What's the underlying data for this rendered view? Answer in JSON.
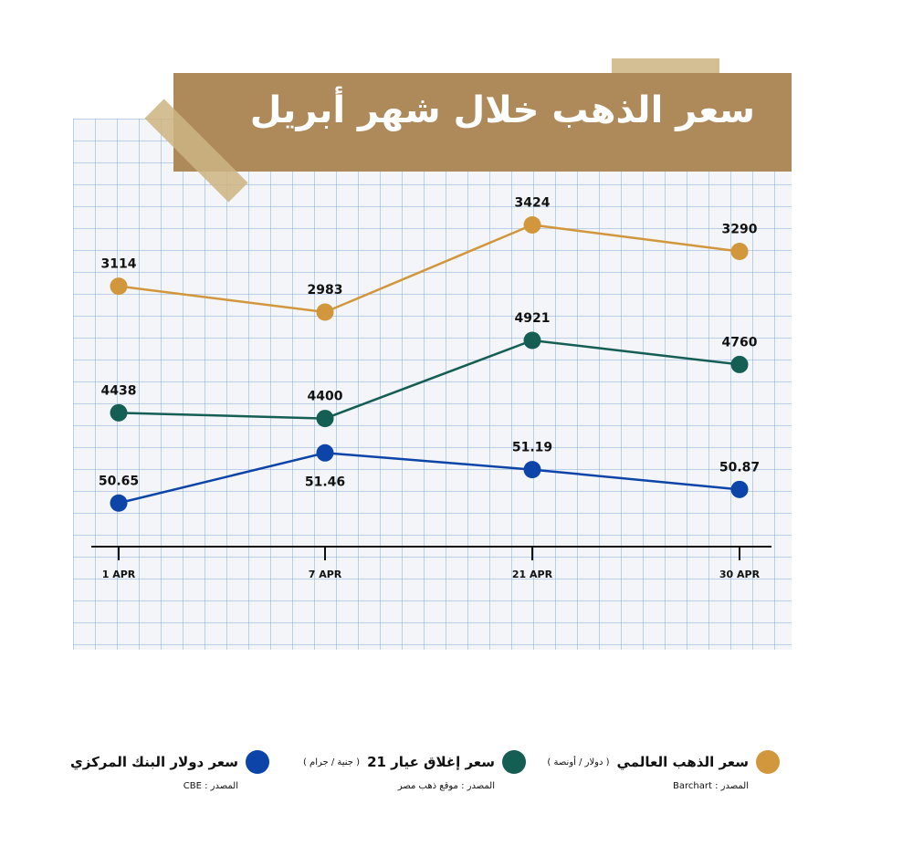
{
  "title": "سعر الذهب خلال شهر أبريل",
  "chart_data": {
    "type": "line",
    "categories": [
      "1 APR",
      "7 APR",
      "21 APR",
      "30 APR"
    ],
    "grid": true,
    "series": [
      {
        "name": "سعر الذهب العالمي",
        "unit": "( دولار / أونصة )",
        "source": "المصدر : Barchart",
        "color": "#d2973d",
        "values": [
          3114,
          2983,
          3424,
          3290
        ],
        "labels": [
          "3114",
          "2983",
          "3424",
          "3290"
        ]
      },
      {
        "name": "سعر إغلاق عيار 21",
        "unit": "( جنية / جرام )",
        "source": "المصدر : موقع ذهب مصر",
        "color": "#155e54",
        "values": [
          4438,
          4400,
          4921,
          4760
        ],
        "labels": [
          "4438",
          "4400",
          "4921",
          "4760"
        ]
      },
      {
        "name": "سعر دولار البنك المركزي",
        "unit": "",
        "source": "المصدر : CBE",
        "color": "#0c44a8",
        "values": [
          50.65,
          51.46,
          51.19,
          50.87
        ],
        "labels": [
          "50.65",
          "51.46",
          "51.19",
          "50.87"
        ]
      }
    ]
  }
}
